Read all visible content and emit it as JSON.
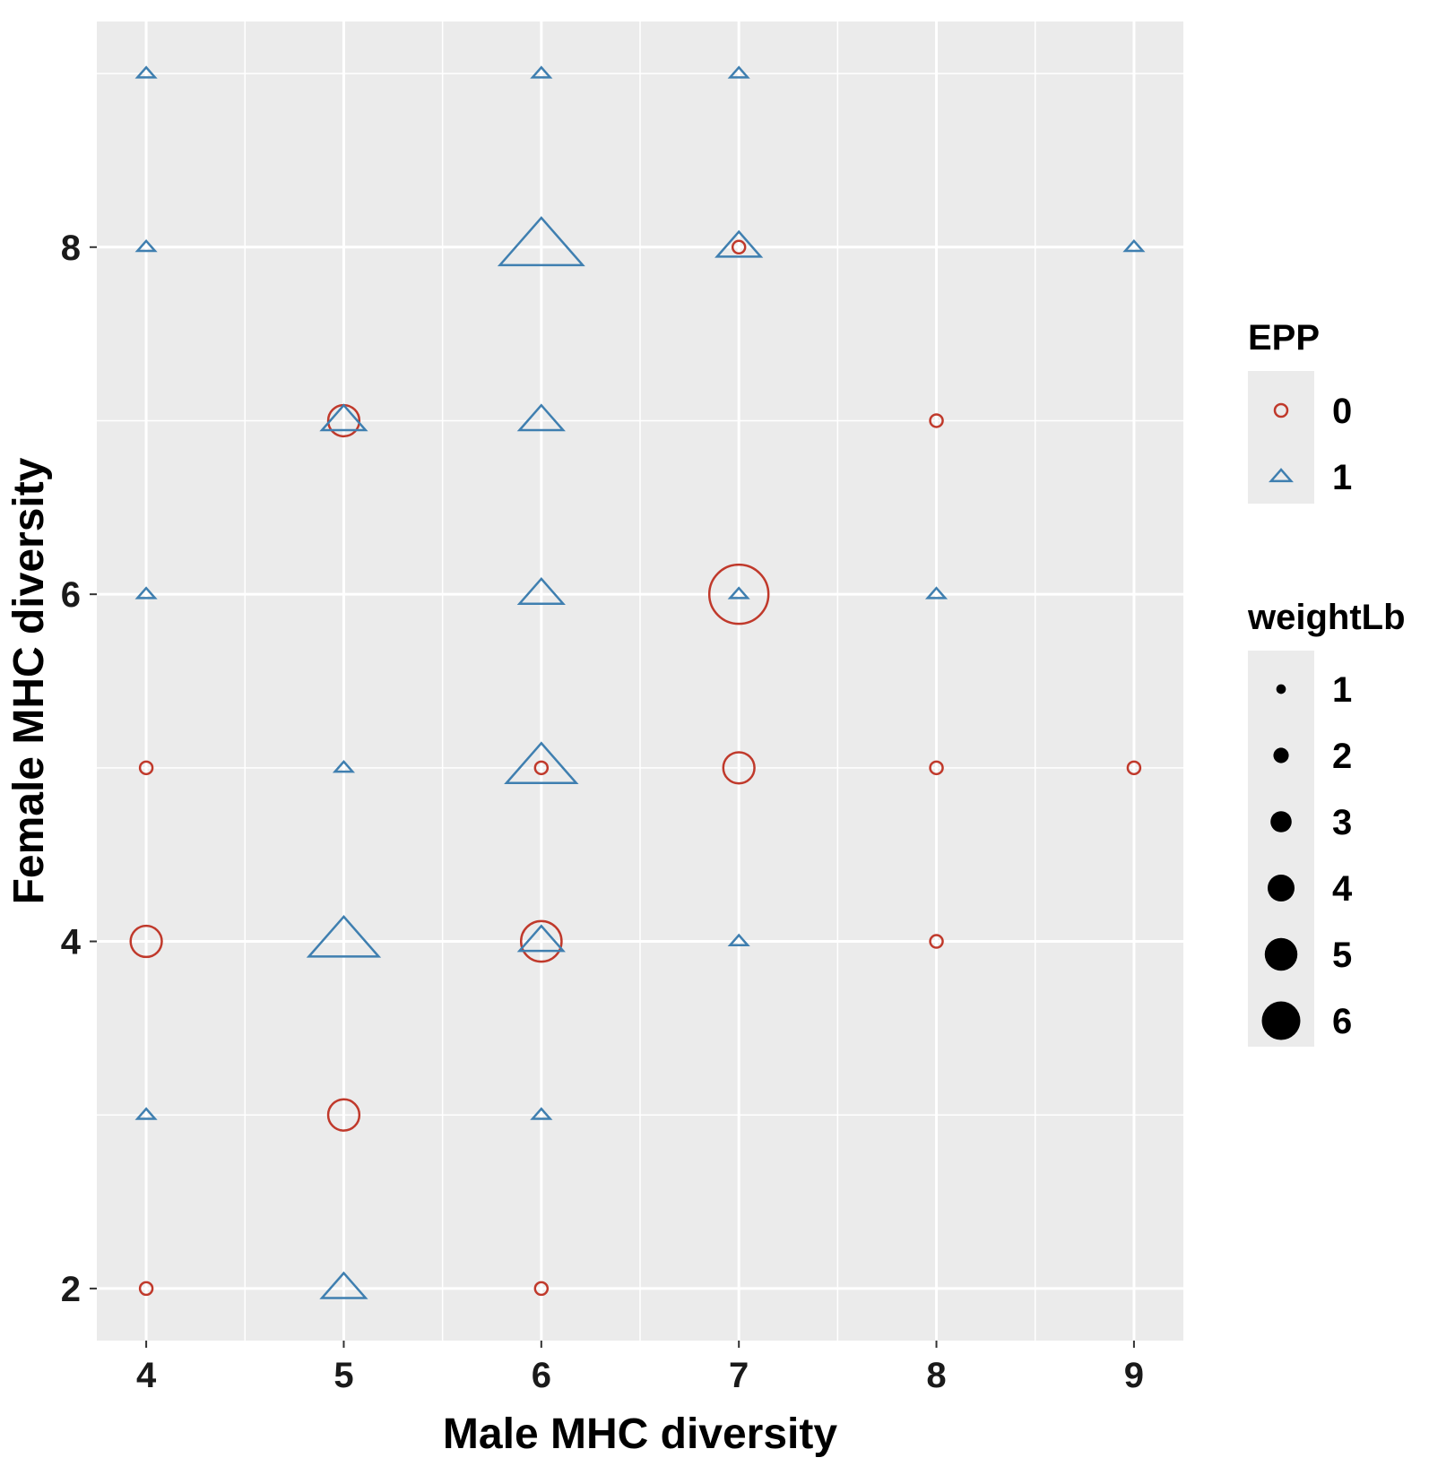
{
  "chart_data": {
    "type": "scatter",
    "xlabel": "Male MHC diversity",
    "ylabel": "Female MHC diversity",
    "xlim": [
      3.75,
      9.25
    ],
    "ylim": [
      1.7,
      9.3
    ],
    "x_ticks": [
      4,
      5,
      6,
      7,
      8,
      9
    ],
    "y_ticks": [
      2,
      4,
      6,
      8
    ],
    "grid": true,
    "colors": {
      "panel_bg": "#ebebeb",
      "grid": "#ffffff",
      "epp0": "#c0392b",
      "epp1": "#3f7fb0",
      "size_key": "#000000",
      "legend_key_bg": "#ebebeb"
    },
    "legend": {
      "position": "right",
      "shape": {
        "title": "EPP",
        "items": [
          {
            "label": "0",
            "shape": "circle"
          },
          {
            "label": "1",
            "shape": "triangle"
          }
        ]
      },
      "size": {
        "title": "weightLb",
        "items": [
          "1",
          "2",
          "3",
          "4",
          "5",
          "6"
        ]
      }
    },
    "series": [
      {
        "name": "0",
        "shape": "circle",
        "points": [
          {
            "x": 4,
            "y": 2,
            "weight": 1
          },
          {
            "x": 4,
            "y": 4,
            "weight": 3
          },
          {
            "x": 4,
            "y": 5,
            "weight": 1
          },
          {
            "x": 5,
            "y": 3,
            "weight": 3
          },
          {
            "x": 5,
            "y": 7,
            "weight": 3
          },
          {
            "x": 6,
            "y": 2,
            "weight": 1
          },
          {
            "x": 6,
            "y": 4,
            "weight": 4
          },
          {
            "x": 6,
            "y": 5,
            "weight": 1
          },
          {
            "x": 7,
            "y": 5,
            "weight": 3
          },
          {
            "x": 7,
            "y": 6,
            "weight": 6
          },
          {
            "x": 7,
            "y": 8,
            "weight": 1
          },
          {
            "x": 8,
            "y": 4,
            "weight": 1
          },
          {
            "x": 8,
            "y": 5,
            "weight": 1
          },
          {
            "x": 8,
            "y": 7,
            "weight": 1
          },
          {
            "x": 9,
            "y": 5,
            "weight": 1
          }
        ]
      },
      {
        "name": "1",
        "shape": "triangle",
        "points": [
          {
            "x": 4,
            "y": 3,
            "weight": 1
          },
          {
            "x": 4,
            "y": 6,
            "weight": 1
          },
          {
            "x": 4,
            "y": 8,
            "weight": 1
          },
          {
            "x": 4,
            "y": 9,
            "weight": 1
          },
          {
            "x": 5,
            "y": 2,
            "weight": 3
          },
          {
            "x": 5,
            "y": 4,
            "weight": 5
          },
          {
            "x": 5,
            "y": 5,
            "weight": 1
          },
          {
            "x": 5,
            "y": 7,
            "weight": 3
          },
          {
            "x": 6,
            "y": 3,
            "weight": 1
          },
          {
            "x": 6,
            "y": 4,
            "weight": 3
          },
          {
            "x": 6,
            "y": 5,
            "weight": 5
          },
          {
            "x": 6,
            "y": 6,
            "weight": 3
          },
          {
            "x": 6,
            "y": 7,
            "weight": 3
          },
          {
            "x": 6,
            "y": 8,
            "weight": 6
          },
          {
            "x": 6,
            "y": 9,
            "weight": 1
          },
          {
            "x": 7,
            "y": 4,
            "weight": 1
          },
          {
            "x": 7,
            "y": 6,
            "weight": 1
          },
          {
            "x": 7,
            "y": 8,
            "weight": 3
          },
          {
            "x": 7,
            "y": 9,
            "weight": 1
          },
          {
            "x": 8,
            "y": 6,
            "weight": 1
          },
          {
            "x": 9,
            "y": 8,
            "weight": 1
          }
        ]
      }
    ]
  }
}
